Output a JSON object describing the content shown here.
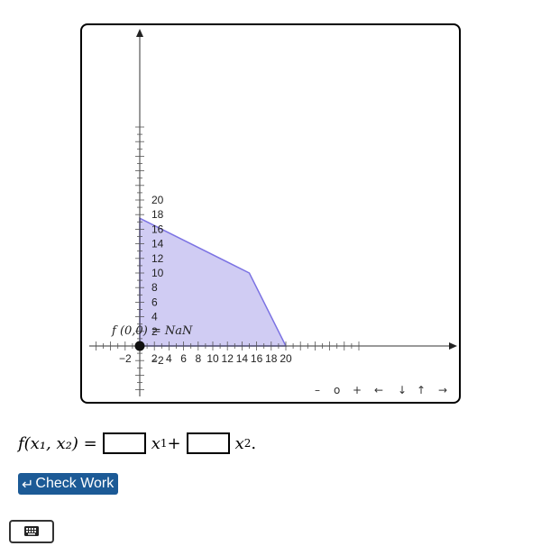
{
  "graph": {
    "x_ticks": [
      -2,
      2,
      4,
      6,
      8,
      10,
      12,
      14,
      16,
      18,
      20
    ],
    "y_ticks": [
      -2,
      2,
      4,
      6,
      8,
      10,
      12,
      14,
      16,
      18,
      20
    ],
    "feasible_region": [
      [
        0,
        0
      ],
      [
        0,
        17.5
      ],
      [
        15,
        10
      ],
      [
        20,
        0
      ]
    ],
    "region_fill": "#d0ccf3",
    "region_stroke": "#7b72e3",
    "point": {
      "x": 0,
      "y": 0,
      "label": "f (0,0) = NaN"
    }
  },
  "nav": [
    "–",
    "o",
    "+",
    "←",
    "↓",
    "↑",
    "→"
  ],
  "formula": {
    "lhs": "f(x₁, x₂) =",
    "term1_var": "x",
    "term1_sub": "1",
    "plus": "+",
    "term2_var": "x",
    "term2_sub": "2",
    "period": ".",
    "box1_value": "",
    "box2_value": ""
  },
  "check_work": {
    "icon": "↵",
    "label": "Check Work"
  },
  "keyboard_icon": "keyboard-icon"
}
